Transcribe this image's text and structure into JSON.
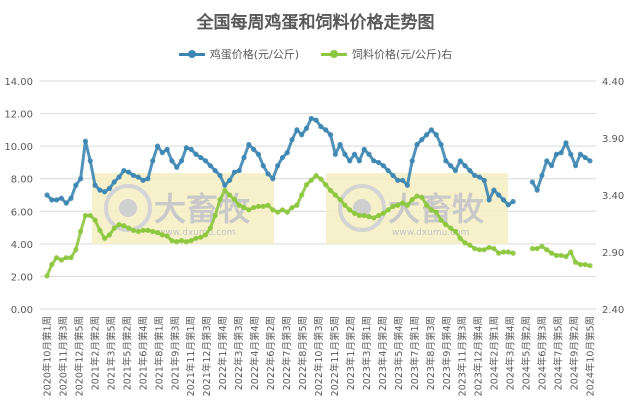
{
  "chart_data": {
    "type": "line",
    "title": "全国每周鸡蛋和饲料价格走势图",
    "watermark": {
      "logo": "大畜牧",
      "url": "www.dxumu.com"
    },
    "x_tick_labels": [
      "2020年10月第1周",
      "2020年11月第3周",
      "2020年12月第5周",
      "2021年2月第2周",
      "2021年3月第5周",
      "2021年5月第2周",
      "2021年6月第4周",
      "2021年8月第1周",
      "2021年9月第3周",
      "2021年11月第1周",
      "2021年12月第3周",
      "2022年1月第4周",
      "2022年3月第3周",
      "2022年4月第4周",
      "2022年6月第2周",
      "2022年7月第3周",
      "2022年8月第5周",
      "2022年10月第3周",
      "2022年11月第5周",
      "2023年1月第2周",
      "2023年3月第1周",
      "2023年4月第2周",
      "2023年5月第4周",
      "2023年7月第1周",
      "2023年8月第3周",
      "2023年9月第4周",
      "2023年11月第3周",
      "2023年12月第4周",
      "2024年2月第1周",
      "2024年3月第4周",
      "2024年5月第2周",
      "2024年6月第3周",
      "2024年7月第5周",
      "2024年9月第2周",
      "2024年10月第5周"
    ],
    "y_left": {
      "range": [
        0,
        14
      ],
      "ticks": [
        "0.00",
        "2.00",
        "4.00",
        "6.00",
        "8.00",
        "10.00",
        "12.00",
        "14.00"
      ]
    },
    "y_right": {
      "range": [
        2.4,
        4.4
      ],
      "ticks": [
        "2.40",
        "2.90",
        "3.40",
        "3.90",
        "4.40"
      ]
    },
    "grid": true,
    "legend_placement": "top",
    "series": [
      {
        "name": "鸡蛋价格(元/公斤)",
        "axis": "left",
        "color": "#3d86b3",
        "values": [
          7.0,
          6.7,
          6.7,
          6.8,
          6.5,
          6.8,
          7.6,
          8.0,
          10.3,
          9.1,
          7.6,
          7.3,
          7.2,
          7.4,
          7.8,
          8.1,
          8.5,
          8.4,
          8.2,
          8.1,
          7.9,
          8.0,
          9.1,
          10.0,
          9.6,
          9.8,
          9.1,
          8.7,
          9.1,
          9.9,
          9.8,
          9.5,
          9.3,
          9.1,
          8.8,
          8.5,
          8.2,
          7.6,
          7.9,
          8.4,
          8.5,
          9.3,
          10.1,
          9.8,
          9.5,
          8.8,
          8.3,
          8.0,
          8.8,
          9.3,
          9.6,
          10.4,
          11.0,
          10.7,
          11.1,
          11.7,
          11.6,
          11.2,
          11.0,
          10.7,
          9.5,
          10.1,
          9.5,
          9.1,
          9.5,
          9.1,
          9.8,
          9.5,
          9.1,
          9.0,
          8.8,
          8.5,
          8.2,
          7.9,
          7.9,
          7.6,
          9.1,
          10.1,
          10.4,
          10.7,
          11.0,
          10.7,
          10.1,
          9.1,
          8.8,
          8.5,
          9.1,
          8.8,
          8.5,
          8.2,
          8.1,
          7.9,
          6.7,
          7.3,
          7.0,
          6.7,
          6.4,
          6.6,
          null,
          null,
          null,
          7.8,
          7.3,
          8.2,
          9.1,
          8.8,
          9.5,
          9.6,
          10.2,
          9.5,
          8.8,
          9.5,
          9.3,
          9.1
        ]
      },
      {
        "name": "饲料价格(元/公斤)右",
        "axis": "right",
        "color": "#8dc63f",
        "values": [
          2.69,
          2.79,
          2.85,
          2.83,
          2.85,
          2.85,
          2.92,
          3.08,
          3.22,
          3.22,
          3.18,
          3.09,
          3.02,
          3.05,
          3.11,
          3.14,
          3.13,
          3.11,
          3.09,
          3.08,
          3.09,
          3.09,
          3.08,
          3.07,
          3.05,
          3.04,
          3.0,
          2.99,
          3.0,
          2.99,
          3.0,
          3.02,
          3.03,
          3.05,
          3.11,
          3.22,
          3.36,
          3.44,
          3.4,
          3.36,
          3.31,
          3.29,
          3.27,
          3.29,
          3.3,
          3.3,
          3.31,
          3.27,
          3.25,
          3.27,
          3.25,
          3.29,
          3.31,
          3.4,
          3.49,
          3.53,
          3.57,
          3.54,
          3.49,
          3.44,
          3.4,
          3.36,
          3.31,
          3.27,
          3.24,
          3.22,
          3.22,
          3.21,
          3.2,
          3.22,
          3.24,
          3.27,
          3.3,
          3.31,
          3.33,
          3.31,
          3.36,
          3.39,
          3.38,
          3.31,
          3.27,
          3.25,
          3.18,
          3.14,
          3.11,
          3.08,
          3.02,
          2.98,
          2.96,
          2.93,
          2.92,
          2.92,
          2.94,
          2.93,
          2.89,
          2.9,
          2.9,
          2.89,
          null,
          null,
          null,
          2.93,
          2.93,
          2.95,
          2.92,
          2.89,
          2.87,
          2.87,
          2.86,
          2.9,
          2.81,
          2.79,
          2.79,
          2.78
        ]
      }
    ]
  }
}
